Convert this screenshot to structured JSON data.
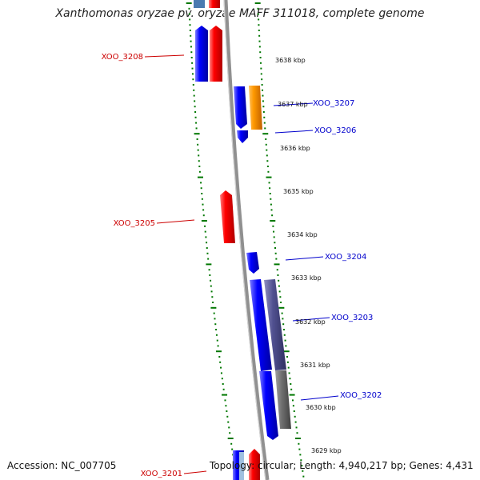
{
  "title": "Xanthomonas oryzae pv. oryzae MAFF 311018, complete genome",
  "footer": {
    "accession": "Accession: NC_007705",
    "summary": "Topology: circular; Length: 4,940,217 bp; Genes: 4,431"
  },
  "colors": {
    "forward_gene": "#ff0000",
    "reverse_gene": "#0000ff",
    "backbone": "#888888",
    "tick": "#007700",
    "left_label": "#cc0000",
    "right_label": "#0000cc"
  },
  "kbp_labels": [
    "3638 kbp",
    "3637 kbp",
    "3636 kbp",
    "3635 kbp",
    "3634 kbp",
    "3633 kbp",
    "3632 kbp",
    "3631 kbp",
    "3630 kbp",
    "3629 kbp"
  ],
  "genes_left": [
    {
      "label": "XOO_3208"
    },
    {
      "label": "XOO_3205"
    },
    {
      "label": "XOO_3201"
    }
  ],
  "genes_right": [
    {
      "label": "XOO_3207"
    },
    {
      "label": "XOO_3206"
    },
    {
      "label": "XOO_3204"
    },
    {
      "label": "XOO_3203"
    },
    {
      "label": "XOO_3202"
    }
  ]
}
